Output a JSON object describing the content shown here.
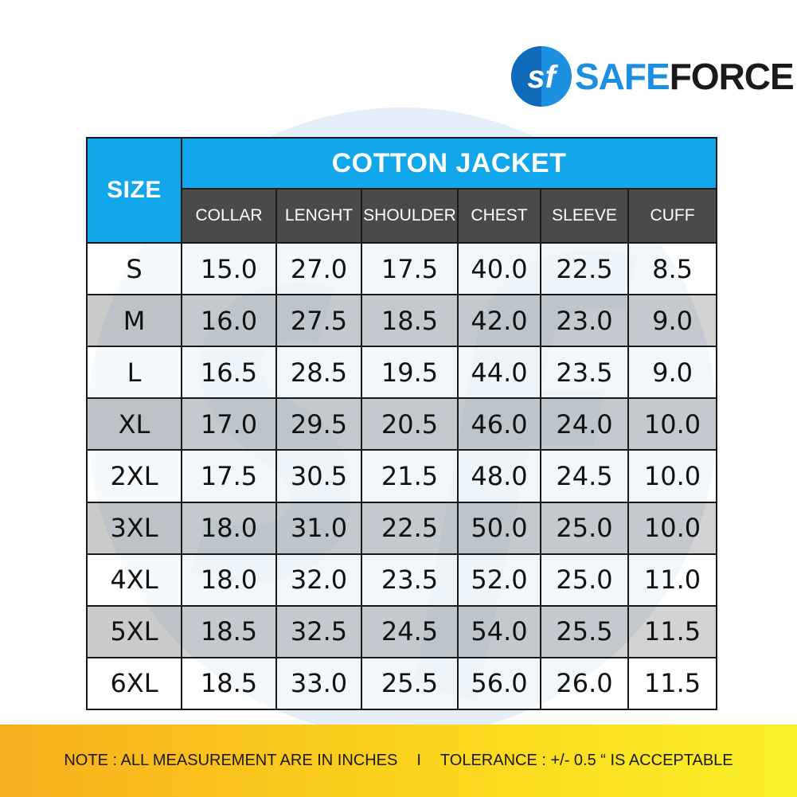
{
  "brand": {
    "logo_initials": "sf",
    "name_part1": "SAFE",
    "name_part2": "FORCE",
    "colors": {
      "blue": "#1d8fe0",
      "dark": "#1a1a1a",
      "header_blue": "#12a6eb",
      "header_gray": "#4a4a4a"
    }
  },
  "table": {
    "size_header": "SIZE",
    "title": "COTTON JACKET",
    "columns": [
      "COLLAR",
      "LENGHT",
      "SHOULDER",
      "CHEST",
      "SLEEVE",
      "CUFF"
    ],
    "rows": [
      {
        "size": "S",
        "values": [
          "15.0",
          "27.0",
          "17.5",
          "40.0",
          "22.5",
          "8.5"
        ]
      },
      {
        "size": "M",
        "values": [
          "16.0",
          "27.5",
          "18.5",
          "42.0",
          "23.0",
          "9.0"
        ]
      },
      {
        "size": "L",
        "values": [
          "16.5",
          "28.5",
          "19.5",
          "44.0",
          "23.5",
          "9.0"
        ]
      },
      {
        "size": "XL",
        "values": [
          "17.0",
          "29.5",
          "20.5",
          "46.0",
          "24.0",
          "10.0"
        ]
      },
      {
        "size": "2XL",
        "values": [
          "17.5",
          "30.5",
          "21.5",
          "48.0",
          "24.5",
          "10.0"
        ]
      },
      {
        "size": "3XL",
        "values": [
          "18.0",
          "31.0",
          "22.5",
          "50.0",
          "25.0",
          "10.0"
        ]
      },
      {
        "size": "4XL",
        "values": [
          "18.0",
          "32.0",
          "23.5",
          "52.0",
          "25.0",
          "11.0"
        ]
      },
      {
        "size": "5XL",
        "values": [
          "18.5",
          "32.5",
          "24.5",
          "54.0",
          "25.5",
          "11.5"
        ]
      },
      {
        "size": "6XL",
        "values": [
          "18.5",
          "33.0",
          "25.5",
          "56.0",
          "26.0",
          "11.5"
        ]
      }
    ]
  },
  "footer": {
    "note": "NOTE : ALL MEASUREMENT ARE IN INCHES",
    "separator": "I",
    "tolerance": "TOLERANCE : +/- 0.5 “ IS ACCEPTABLE"
  }
}
